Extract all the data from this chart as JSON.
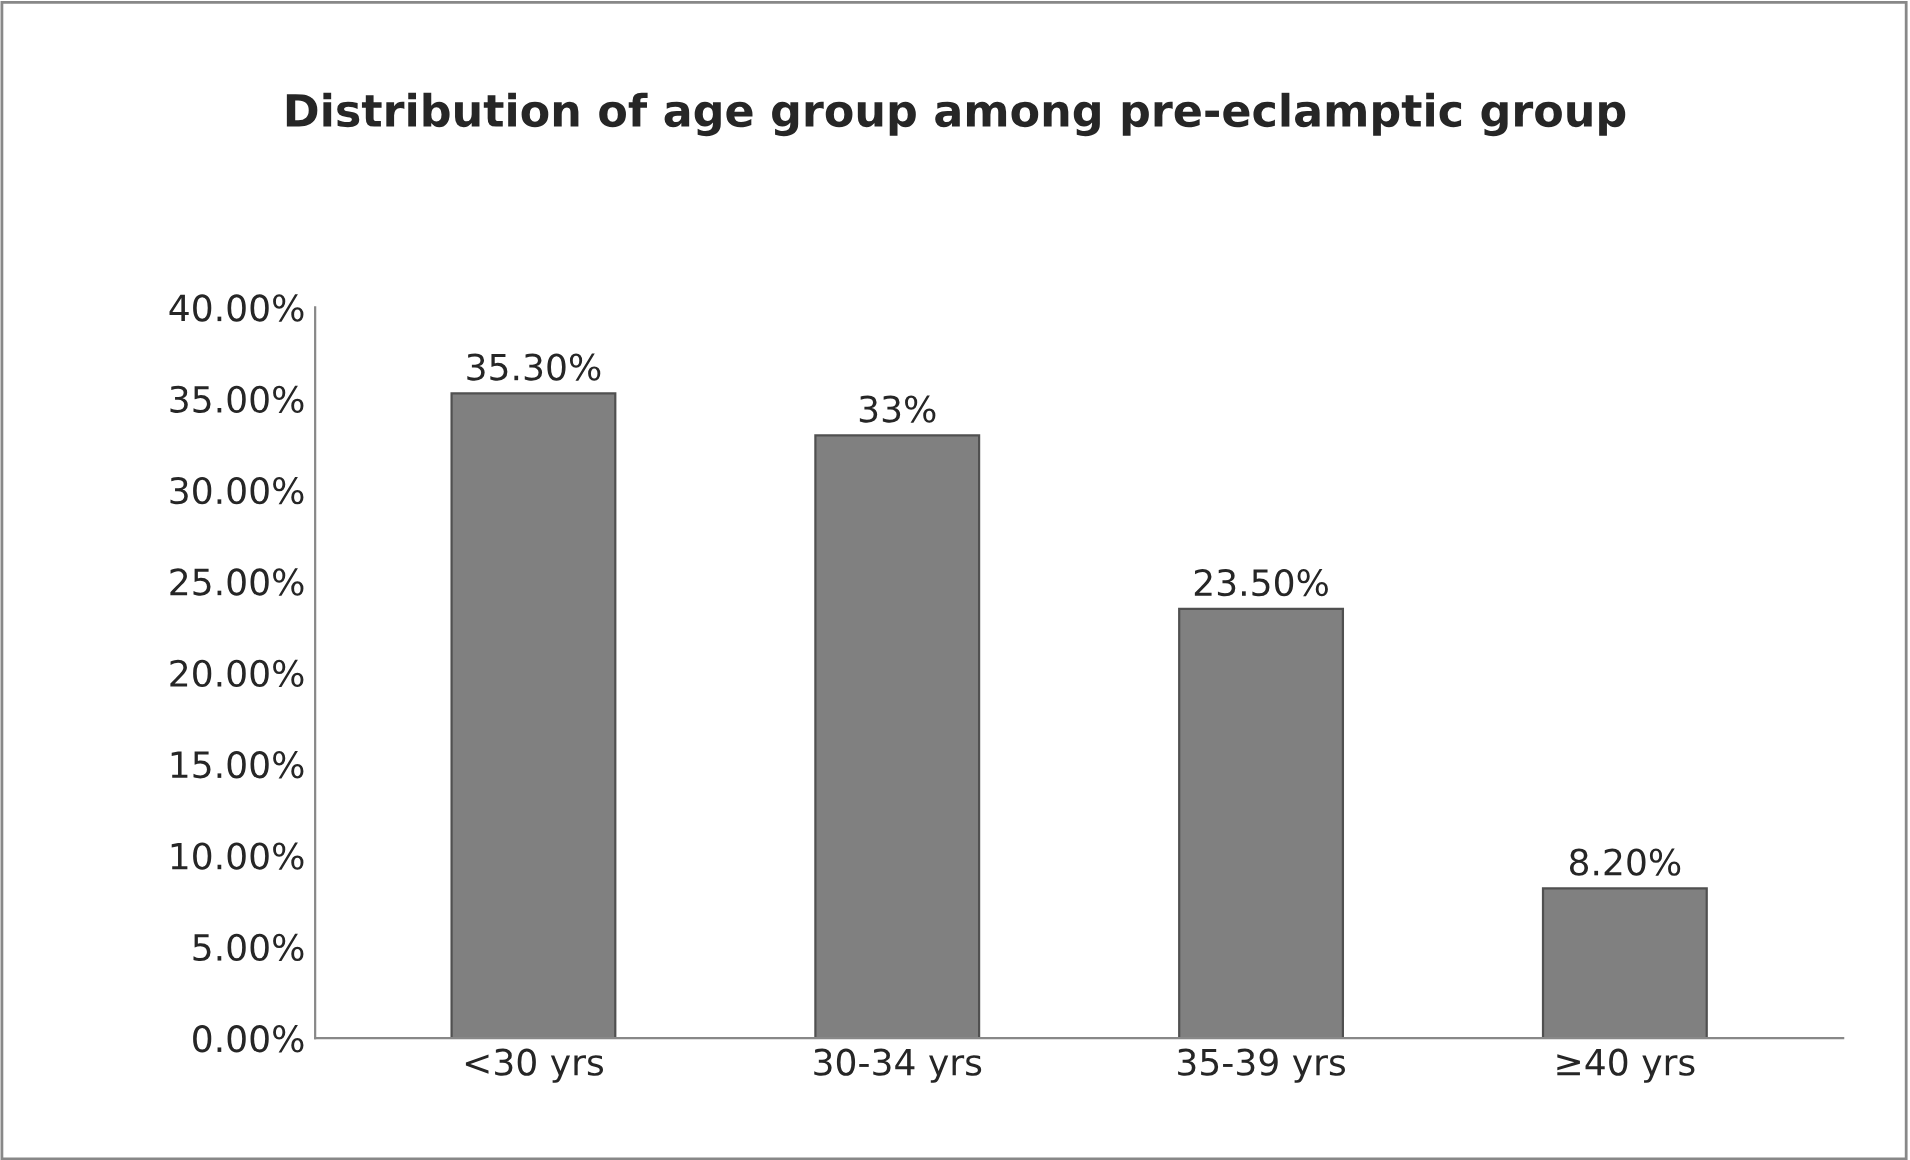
{
  "chart_data": {
    "type": "bar",
    "title": "Distribution of age group among pre-eclamptic group",
    "categories": [
      "<30 yrs",
      "30-34 yrs",
      "35-39 yrs",
      "≥40 yrs"
    ],
    "values": [
      35.3,
      33,
      23.5,
      8.2
    ],
    "value_labels": [
      "35.30%",
      "33%",
      "23.50%",
      "8.20%"
    ],
    "color": "#808080",
    "ylim": [
      0,
      40
    ],
    "yticks": [
      {
        "value": 0,
        "label": "0.00%"
      },
      {
        "value": 5,
        "label": "5.00%"
      },
      {
        "value": 10,
        "label": "10.00%"
      },
      {
        "value": 15,
        "label": "15.00%"
      },
      {
        "value": 20,
        "label": "20.00%"
      },
      {
        "value": 25,
        "label": "25.00%"
      },
      {
        "value": 30,
        "label": "30.00%"
      },
      {
        "value": 35,
        "label": "35.00%"
      },
      {
        "value": 40,
        "label": "40.00%"
      }
    ],
    "grid": false
  }
}
